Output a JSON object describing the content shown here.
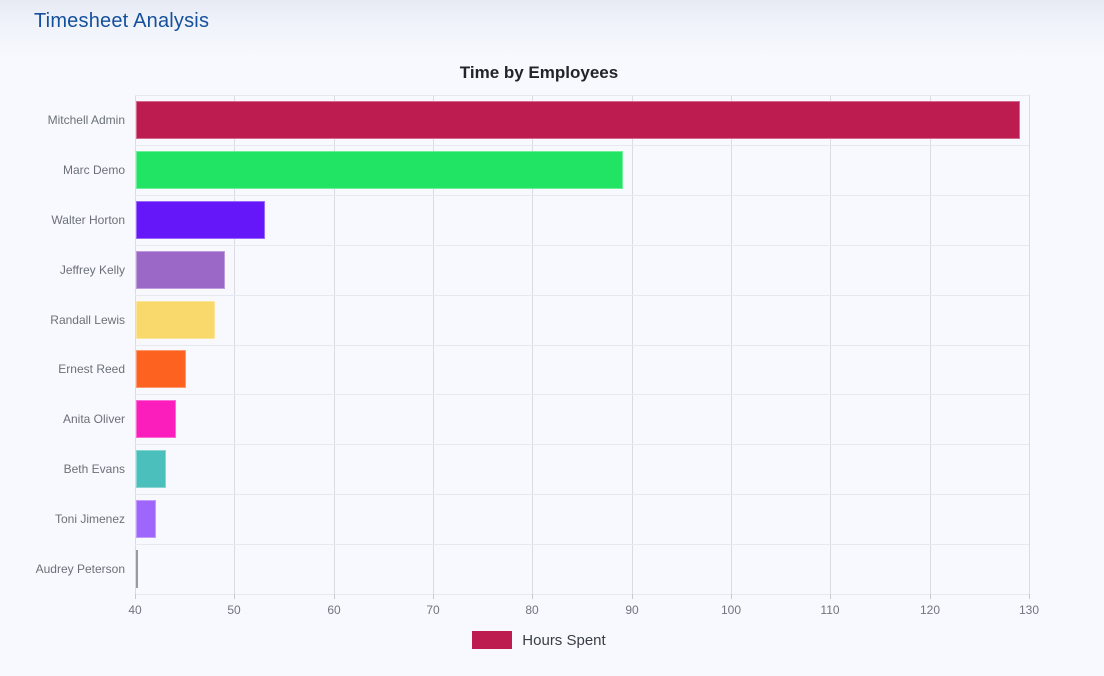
{
  "page": {
    "title": "Timesheet Analysis"
  },
  "chart_data": {
    "type": "bar",
    "orientation": "horizontal",
    "title": "Time by Employees",
    "categories": [
      "Mitchell Admin",
      "Marc Demo",
      "Walter Horton",
      "Jeffrey Kelly",
      "Randall Lewis",
      "Ernest Reed",
      "Anita Oliver",
      "Beth Evans",
      "Toni Jimenez",
      "Audrey Peterson"
    ],
    "series": [
      {
        "name": "Hours Spent",
        "values": [
          129,
          89,
          53,
          49,
          48,
          45,
          44,
          43,
          42,
          40
        ]
      }
    ],
    "bar_colors": [
      "#bd1c50",
      "#21e464",
      "#6617f9",
      "#9c68c8",
      "#f9d96b",
      "#fd6220",
      "#fb1dbc",
      "#4bbfbb",
      "#9f66fb",
      "#60646b"
    ],
    "legend_color": "#bd1c50",
    "xlim": [
      40,
      130
    ],
    "x_ticks": [
      40,
      50,
      60,
      70,
      80,
      90,
      100,
      110,
      120,
      130
    ],
    "grid": true,
    "legend_position": "bottom",
    "colors": {
      "page_title": "#14509c",
      "vgrid": "#d9dce3",
      "hgrid": "#e7e9f0",
      "axis_text": "#70757e"
    }
  }
}
